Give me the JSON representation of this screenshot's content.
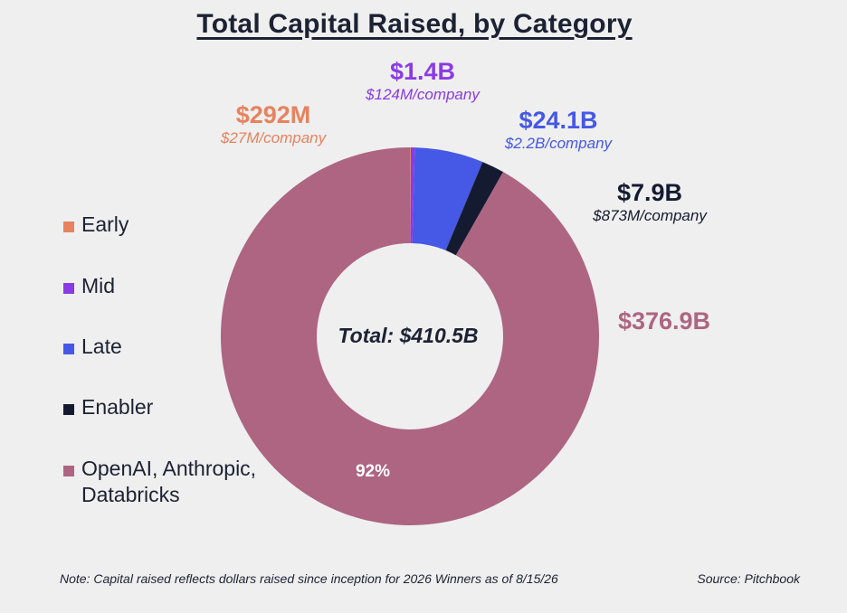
{
  "chart_data": {
    "type": "pie",
    "title": "Total Capital Raised, by Category",
    "center_label": "Total: $410.5B",
    "total_billions": 410.5,
    "slices": [
      {
        "name": "Early",
        "value_billions": 0.292,
        "value_label": "$292M",
        "per_company_label": "$27M/company",
        "color": "#e6835e"
      },
      {
        "name": "Mid",
        "value_billions": 1.4,
        "value_label": "$1.4B",
        "per_company_label": "$124M/company",
        "color": "#8a3be6"
      },
      {
        "name": "Late",
        "value_billions": 24.1,
        "value_label": "$24.1B",
        "per_company_label": "$2.2B/company",
        "color": "#4558e6"
      },
      {
        "name": "Enabler",
        "value_billions": 7.9,
        "value_label": "$7.9B",
        "per_company_label": "$873M/company",
        "color": "#141b31"
      },
      {
        "name": "OpenAI, Anthropic, Databricks",
        "value_billions": 376.9,
        "value_label": "$376.9B",
        "per_company_label": "",
        "percent_label": "92%",
        "color": "#ad6582"
      }
    ],
    "legend_position": "left",
    "legend": [
      "Early",
      "Mid",
      "Late",
      "Enabler",
      "OpenAI, Anthropic, Databricks"
    ]
  },
  "footer": {
    "note": "Note: Capital raised reflects dollars raised since inception for 2026 Winners as of 8/15/26",
    "source": "Source: Pitchbook"
  }
}
